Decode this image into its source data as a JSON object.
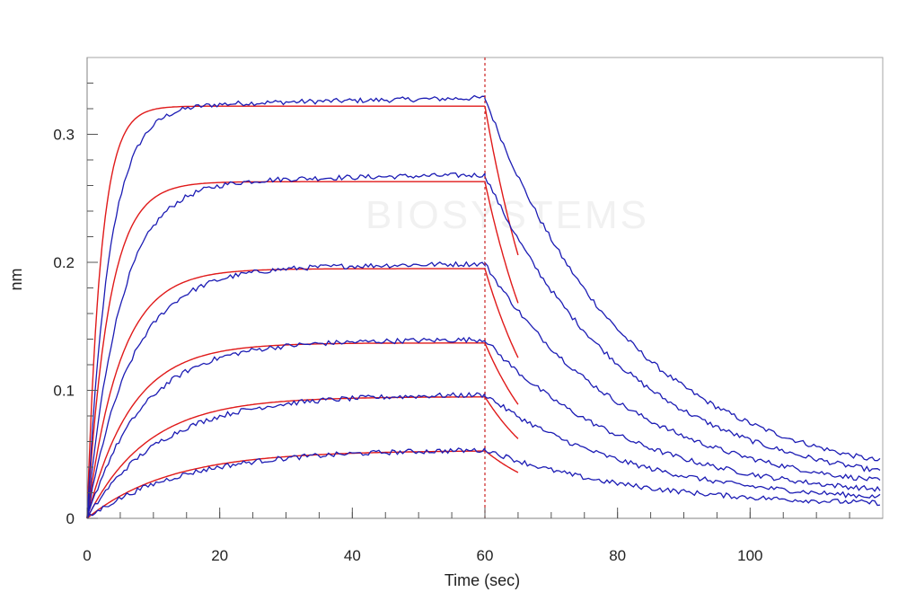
{
  "chart_data": {
    "type": "line",
    "xlabel": "Time (sec)",
    "ylabel": "nm",
    "xlim": [
      0,
      120
    ],
    "ylim": [
      0,
      0.36
    ],
    "x_ticks": [
      0,
      20,
      40,
      60,
      80,
      100
    ],
    "y_ticks": [
      0,
      0.1,
      0.2,
      0.3
    ],
    "x_tick_labels": [
      "0",
      "20",
      "40",
      "60",
      "80",
      "100"
    ],
    "y_tick_labels": [
      "0",
      "0.1",
      "0.2",
      "0.3"
    ],
    "grid": false,
    "legend": "none",
    "phase_boundary_x": 60,
    "colors": {
      "measured": "#1c1cb4",
      "fit": "#e01a1a",
      "boundary": "#cc2222",
      "axis": "#808080"
    },
    "curves": [
      {
        "plateau": 0.322,
        "ka": 0.48,
        "ka_measured": 0.3,
        "dissoc_end": 0.024,
        "kd": 0.045
      },
      {
        "plateau": 0.263,
        "ka": 0.3,
        "ka_measured": 0.2,
        "dissoc_end": 0.02,
        "kd": 0.045
      },
      {
        "plateau": 0.195,
        "ka": 0.2,
        "ka_measured": 0.15,
        "dissoc_end": 0.017,
        "kd": 0.045
      },
      {
        "plateau": 0.137,
        "ka": 0.15,
        "ka_measured": 0.12,
        "dissoc_end": 0.014,
        "kd": 0.045
      },
      {
        "plateau": 0.095,
        "ka": 0.11,
        "ka_measured": 0.09,
        "dissoc_end": 0.011,
        "kd": 0.045
      },
      {
        "plateau": 0.053,
        "ka": 0.08,
        "ka_measured": 0.07,
        "dissoc_end": 0.009,
        "kd": 0.045
      }
    ]
  },
  "watermark": {
    "text": "BIOSYSTEMS"
  }
}
